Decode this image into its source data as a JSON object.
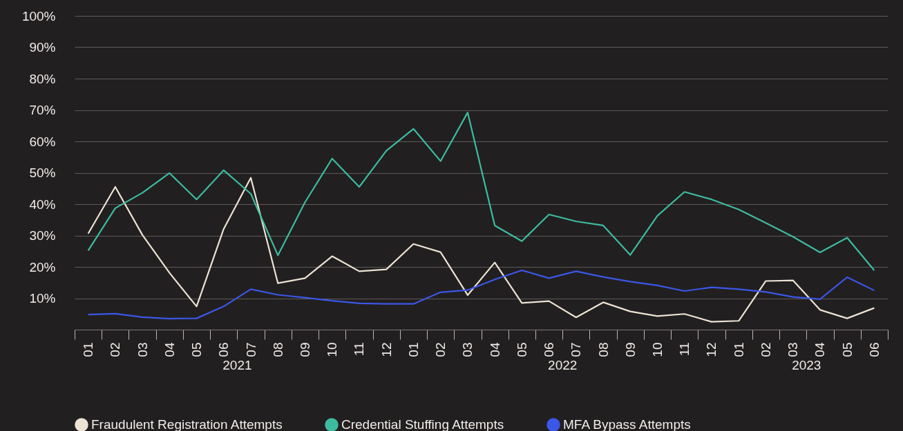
{
  "chart_data": {
    "type": "line",
    "categories": [
      "01",
      "02",
      "03",
      "04",
      "05",
      "06",
      "07",
      "08",
      "09",
      "10",
      "11",
      "12",
      "01",
      "02",
      "03",
      "04",
      "05",
      "06",
      "07",
      "08",
      "09",
      "10",
      "11",
      "12",
      "01",
      "02",
      "03",
      "04",
      "05",
      "06"
    ],
    "annotations": [
      "2021",
      "2022",
      "2023"
    ],
    "ylim": [
      0,
      100
    ],
    "yticks": [
      {
        "value": 10,
        "label": "10%"
      },
      {
        "value": 20,
        "label": "20%"
      },
      {
        "value": 30,
        "label": "30%"
      },
      {
        "value": 40,
        "label": "40%"
      },
      {
        "value": 50,
        "label": "50%"
      },
      {
        "value": 60,
        "label": "60%"
      },
      {
        "value": 70,
        "label": "70%"
      },
      {
        "value": 80,
        "label": "80%"
      },
      {
        "value": 90,
        "label": "90%"
      },
      {
        "value": 100,
        "label": "100%"
      }
    ],
    "grid": "y",
    "legend": "bottom",
    "line_style": "solid",
    "series": [
      {
        "name": "Fraudulent Registration Attempts",
        "color": "#ece3d3",
        "values": [
          30.6,
          45.5,
          30.2,
          18.1,
          7.4,
          32.1,
          48.4,
          14.8,
          16.4,
          23.4,
          18.6,
          19.2,
          27.3,
          24.7,
          11.0,
          21.4,
          8.5,
          9.1,
          3.9,
          8.7,
          5.8,
          4.3,
          5.0,
          2.5,
          2.8,
          15.5,
          15.7,
          6.3,
          3.6,
          6.9
        ]
      },
      {
        "name": "Credential Stuffing Attempts",
        "color": "#3dbca0",
        "values": [
          25.2,
          38.7,
          43.6,
          49.9,
          41.5,
          50.8,
          43.3,
          23.7,
          40.6,
          54.5,
          45.5,
          57.0,
          64.0,
          53.7,
          69.2,
          33.2,
          28.2,
          36.7,
          34.5,
          33.2,
          23.8,
          36.3,
          43.9,
          41.5,
          38.3,
          34.0,
          29.6,
          24.6,
          29.3,
          18.9
        ]
      },
      {
        "name": "MFA Bypass Attempts",
        "color": "#3b57e8",
        "values": [
          4.8,
          5.1,
          4.0,
          3.5,
          3.6,
          7.4,
          12.9,
          11.1,
          10.2,
          9.2,
          8.4,
          8.2,
          8.2,
          11.9,
          12.6,
          16.0,
          18.9,
          16.4,
          18.6,
          16.8,
          15.3,
          14.1,
          12.3,
          13.5,
          12.9,
          12.0,
          10.4,
          9.7,
          16.7,
          12.5
        ]
      }
    ]
  }
}
